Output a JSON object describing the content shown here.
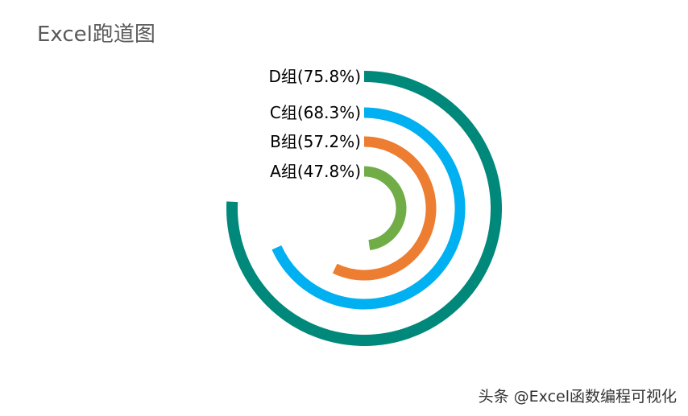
{
  "chart_data": {
    "type": "radial-bar",
    "title": "Excel跑道图",
    "max": 100,
    "categories": [
      "A组",
      "B组",
      "C组",
      "D组"
    ],
    "values": [
      47.8,
      57.2,
      68.3,
      75.8
    ],
    "labels": [
      "A组(47.8%)",
      "B组(57.2%)",
      "C组(68.3%)",
      "D组(75.8%)"
    ],
    "colors": [
      "#70AD47",
      "#ED7D31",
      "#00B0F0",
      "#00897B"
    ]
  },
  "watermark": "头条 @Excel函数编程可视化"
}
